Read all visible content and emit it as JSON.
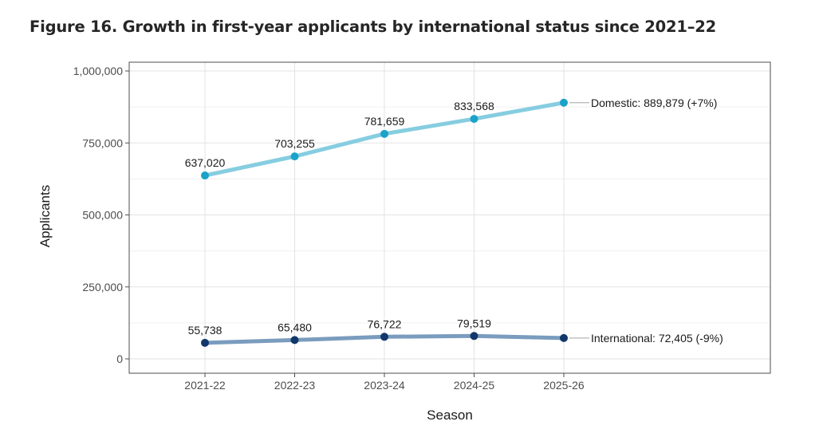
{
  "title": "Figure 16. Growth in first-year applicants by international status since 2021–22",
  "chart_data": {
    "type": "line",
    "title": "Figure 16. Growth in first-year applicants by international status since 2021–22",
    "xlabel": "Season",
    "ylabel": "Applicants",
    "categories": [
      "2021-22",
      "2022-23",
      "2023-24",
      "2024-25",
      "2025-26"
    ],
    "ylim": [
      0,
      1000000
    ],
    "yticks": [
      0,
      250000,
      500000,
      750000,
      1000000
    ],
    "ytick_labels": [
      "0",
      "250,000",
      "500,000",
      "750,000",
      "1,000,000"
    ],
    "grid": true,
    "series": [
      {
        "name": "Domestic",
        "values": [
          637020,
          703255,
          781659,
          833568,
          889879
        ],
        "point_labels": [
          "637,020",
          "703,255",
          "781,659",
          "833,568"
        ],
        "end_label": "Domestic: 889,879 (+7%)",
        "line_color": "#86cde0",
        "point_color": "#1ba2c9"
      },
      {
        "name": "International",
        "values": [
          55738,
          65480,
          76722,
          79519,
          72405
        ],
        "point_labels": [
          "55,738",
          "65,480",
          "76,722",
          "79,519"
        ],
        "end_label": "International: 72,405 (-9%)",
        "line_color": "#7a9cbe",
        "point_color": "#12376b"
      }
    ]
  }
}
